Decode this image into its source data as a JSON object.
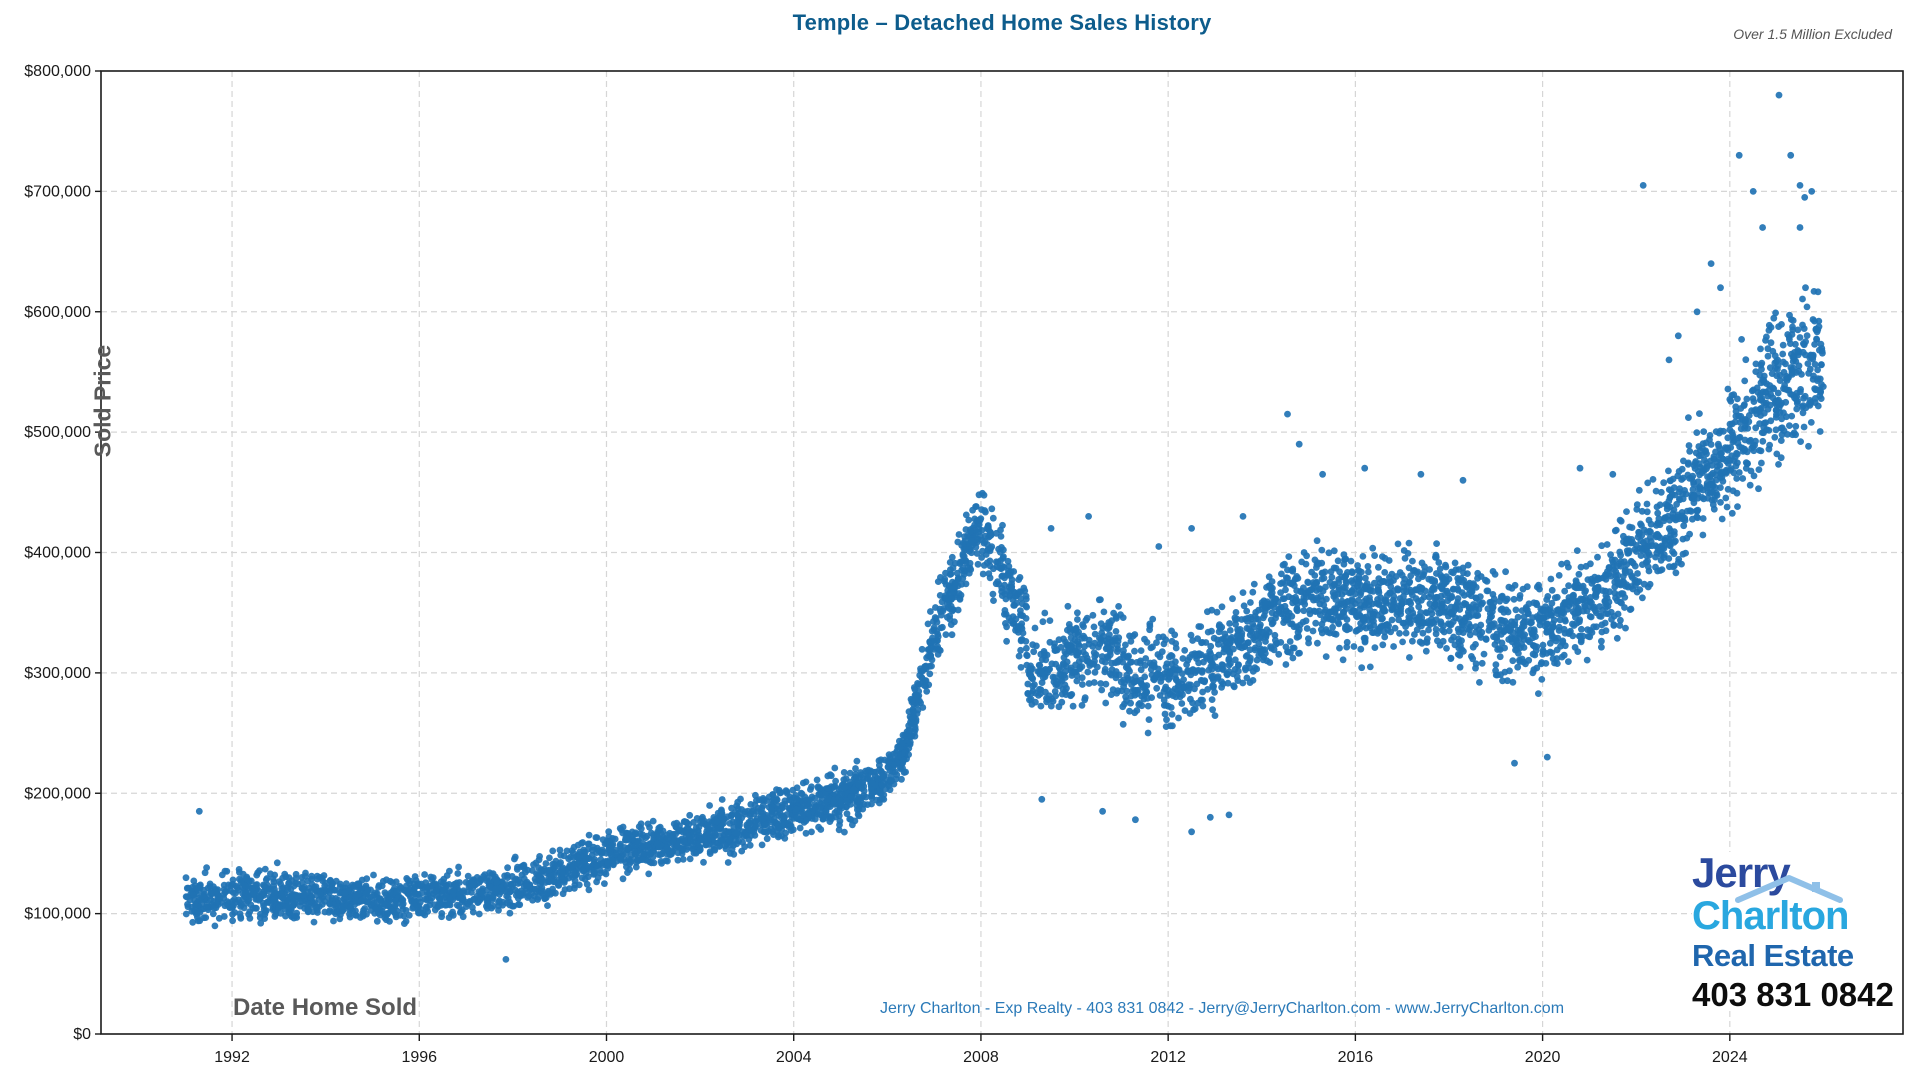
{
  "header": {
    "title": "Temple – Detached Home Sales History",
    "note": "Over 1.5 Million Excluded"
  },
  "footer": {
    "contact": "Jerry Charlton - Exp Realty - 403 831 0842 - Jerry@JerryCharlton.com - www.JerryCharlton.com"
  },
  "logo": {
    "line1": "Jerry",
    "line2": "Charlton",
    "line3": "Real Estate",
    "line4": "403 831 0842",
    "color_line1": "#2b4a9e",
    "color_line2": "#29a7df",
    "color_line3": "#1f66ad",
    "color_line4": "#0d0d0d"
  },
  "chart_data": {
    "type": "scatter",
    "title": "Temple – Detached Home Sales History",
    "xlabel": "Date Home Sold",
    "ylabel": "Sold Price",
    "x_domain": [
      1989.2,
      2027.7
    ],
    "y_domain": [
      0,
      800000
    ],
    "x_ticks": [
      1992,
      1996,
      2000,
      2004,
      2008,
      2012,
      2016,
      2020,
      2024
    ],
    "y_ticks": [
      0,
      100000,
      200000,
      300000,
      400000,
      500000,
      600000,
      700000,
      800000
    ],
    "y_tick_labels": [
      "$0",
      "$100,000",
      "$200,000",
      "$300,000",
      "$400,000",
      "$500,000",
      "$600,000",
      "$700,000",
      "$800,000"
    ],
    "grid": "dashed",
    "grid_color": "#d6d6d6",
    "axis_color": "#1a1a1a",
    "legend": "none",
    "point_color": "#2173b4",
    "point_opacity": 0.92,
    "point_radius": 3.4,
    "seed": 1337,
    "yearly_distribution": [
      {
        "year": 1991.0,
        "span": 1.0,
        "start_price": 112000,
        "end_price": 115000,
        "spread": 30000,
        "count": 115
      },
      {
        "year": 1992.0,
        "span": 1.0,
        "start_price": 115000,
        "end_price": 117000,
        "spread": 30000,
        "count": 150
      },
      {
        "year": 1993.0,
        "span": 1.0,
        "start_price": 116000,
        "end_price": 116000,
        "spread": 28000,
        "count": 150
      },
      {
        "year": 1994.0,
        "span": 1.0,
        "start_price": 114000,
        "end_price": 114000,
        "spread": 27000,
        "count": 140
      },
      {
        "year": 1995.0,
        "span": 1.0,
        "start_price": 113000,
        "end_price": 114000,
        "spread": 26000,
        "count": 130
      },
      {
        "year": 1996.0,
        "span": 1.0,
        "start_price": 115000,
        "end_price": 117000,
        "spread": 26000,
        "count": 130
      },
      {
        "year": 1997.0,
        "span": 1.0,
        "start_price": 118000,
        "end_price": 122000,
        "spread": 27000,
        "count": 130
      },
      {
        "year": 1998.0,
        "span": 1.0,
        "start_price": 125000,
        "end_price": 132000,
        "spread": 28000,
        "count": 130
      },
      {
        "year": 1999.0,
        "span": 1.0,
        "start_price": 136000,
        "end_price": 146000,
        "spread": 28000,
        "count": 140
      },
      {
        "year": 2000.0,
        "span": 1.0,
        "start_price": 150000,
        "end_price": 158000,
        "spread": 26000,
        "count": 150
      },
      {
        "year": 2001.0,
        "span": 1.0,
        "start_price": 158000,
        "end_price": 164000,
        "spread": 26000,
        "count": 150
      },
      {
        "year": 2002.0,
        "span": 1.0,
        "start_price": 166000,
        "end_price": 175000,
        "spread": 30000,
        "count": 160
      },
      {
        "year": 2003.0,
        "span": 1.0,
        "start_price": 177000,
        "end_price": 186000,
        "spread": 28000,
        "count": 160
      },
      {
        "year": 2004.0,
        "span": 1.0,
        "start_price": 186000,
        "end_price": 196000,
        "spread": 30000,
        "count": 170
      },
      {
        "year": 2005.0,
        "span": 1.0,
        "start_price": 196000,
        "end_price": 212000,
        "spread": 32000,
        "count": 170
      },
      {
        "year": 2006.0,
        "span": 0.45,
        "start_price": 215000,
        "end_price": 240000,
        "spread": 30000,
        "count": 80
      },
      {
        "year": 2006.45,
        "span": 0.55,
        "start_price": 250000,
        "end_price": 330000,
        "spread": 40000,
        "count": 100
      },
      {
        "year": 2007.0,
        "span": 1.0,
        "start_price": 330000,
        "end_price": 430000,
        "spread": 45000,
        "count": 170
      },
      {
        "year": 2008.0,
        "span": 1.0,
        "start_price": 420000,
        "end_price": 330000,
        "spread": 55000,
        "count": 150
      },
      {
        "year": 2009.0,
        "span": 1.0,
        "start_price": 300000,
        "end_price": 310000,
        "spread": 55000,
        "count": 140
      },
      {
        "year": 2010.0,
        "span": 1.0,
        "start_price": 315000,
        "end_price": 315000,
        "spread": 55000,
        "count": 140
      },
      {
        "year": 2011.0,
        "span": 1.0,
        "start_price": 300000,
        "end_price": 300000,
        "spread": 55000,
        "count": 130
      },
      {
        "year": 2012.0,
        "span": 1.0,
        "start_price": 295000,
        "end_price": 305000,
        "spread": 55000,
        "count": 140
      },
      {
        "year": 2013.0,
        "span": 1.0,
        "start_price": 315000,
        "end_price": 330000,
        "spread": 55000,
        "count": 150
      },
      {
        "year": 2014.0,
        "span": 1.0,
        "start_price": 345000,
        "end_price": 360000,
        "spread": 60000,
        "count": 160
      },
      {
        "year": 2015.0,
        "span": 1.0,
        "start_price": 360000,
        "end_price": 360000,
        "spread": 60000,
        "count": 160
      },
      {
        "year": 2016.0,
        "span": 1.0,
        "start_price": 355000,
        "end_price": 360000,
        "spread": 60000,
        "count": 170
      },
      {
        "year": 2017.0,
        "span": 1.0,
        "start_price": 360000,
        "end_price": 360000,
        "spread": 60000,
        "count": 170
      },
      {
        "year": 2018.0,
        "span": 1.0,
        "start_price": 350000,
        "end_price": 350000,
        "spread": 60000,
        "count": 160
      },
      {
        "year": 2019.0,
        "span": 1.0,
        "start_price": 335000,
        "end_price": 340000,
        "spread": 60000,
        "count": 150
      },
      {
        "year": 2020.0,
        "span": 1.0,
        "start_price": 340000,
        "end_price": 355000,
        "spread": 60000,
        "count": 150
      },
      {
        "year": 2021.0,
        "span": 1.0,
        "start_price": 360000,
        "end_price": 390000,
        "spread": 60000,
        "count": 160
      },
      {
        "year": 2022.0,
        "span": 1.0,
        "start_price": 400000,
        "end_price": 440000,
        "spread": 70000,
        "count": 160
      },
      {
        "year": 2023.0,
        "span": 1.0,
        "start_price": 450000,
        "end_price": 480000,
        "spread": 70000,
        "count": 160
      },
      {
        "year": 2024.0,
        "span": 1.0,
        "start_price": 490000,
        "end_price": 540000,
        "spread": 80000,
        "count": 170
      },
      {
        "year": 2025.0,
        "span": 1.0,
        "start_price": 530000,
        "end_price": 560000,
        "spread": 85000,
        "count": 170
      }
    ],
    "outliers": [
      [
        1991.3,
        185000
      ],
      [
        1997.85,
        62000
      ],
      [
        2009.3,
        195000
      ],
      [
        2009.5,
        420000
      ],
      [
        2010.3,
        430000
      ],
      [
        2010.6,
        185000
      ],
      [
        2011.3,
        178000
      ],
      [
        2011.8,
        405000
      ],
      [
        2012.5,
        168000
      ],
      [
        2012.5,
        420000
      ],
      [
        2012.9,
        180000
      ],
      [
        2013.3,
        182000
      ],
      [
        2013.6,
        430000
      ],
      [
        2014.55,
        515000
      ],
      [
        2014.8,
        490000
      ],
      [
        2015.3,
        465000
      ],
      [
        2016.2,
        470000
      ],
      [
        2017.4,
        465000
      ],
      [
        2018.3,
        460000
      ],
      [
        2019.4,
        225000
      ],
      [
        2020.1,
        230000
      ],
      [
        2020.8,
        470000
      ],
      [
        2021.5,
        465000
      ],
      [
        2022.15,
        705000
      ],
      [
        2022.7,
        560000
      ],
      [
        2022.9,
        580000
      ],
      [
        2023.3,
        600000
      ],
      [
        2023.6,
        640000
      ],
      [
        2023.8,
        620000
      ],
      [
        2024.2,
        730000
      ],
      [
        2024.5,
        700000
      ],
      [
        2024.7,
        670000
      ],
      [
        2025.05,
        780000
      ],
      [
        2025.3,
        730000
      ],
      [
        2025.5,
        705000
      ],
      [
        2025.5,
        670000
      ],
      [
        2025.6,
        695000
      ],
      [
        2025.75,
        700000
      ]
    ]
  }
}
